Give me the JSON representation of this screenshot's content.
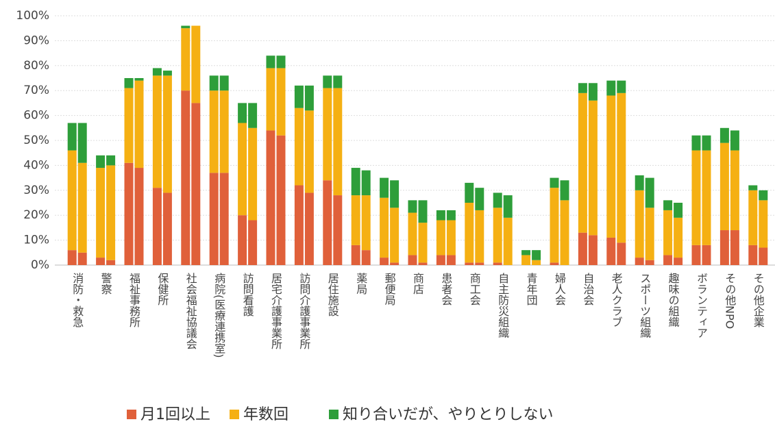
{
  "chart_data": {
    "type": "bar",
    "stacked": true,
    "categories": [
      "消防・救急",
      "警察",
      "福祉事務所",
      "保健所",
      "社会福祉協議会",
      "病院(医療連携室)",
      "訪問看護",
      "居宅介護事業所",
      "訪問介護事業所",
      "居住施設",
      "薬局",
      "郵便局",
      "商店",
      "患者会",
      "商工会",
      "自主防災組織",
      "青年団",
      "婦人会",
      "自治会",
      "老人クラブ",
      "スポーツ組織",
      "趣味の組織",
      "ボランティア",
      "その他NPO",
      "その他企業"
    ],
    "series": [
      {
        "name": "月1回以上",
        "color": "#e0603a",
        "values": [
          [
            6,
            5
          ],
          [
            3,
            2
          ],
          [
            41,
            39
          ],
          [
            31,
            29
          ],
          [
            70,
            65
          ],
          [
            37,
            37
          ],
          [
            20,
            18
          ],
          [
            54,
            52
          ],
          [
            32,
            29
          ],
          [
            34,
            28
          ],
          [
            8,
            6
          ],
          [
            3,
            1
          ],
          [
            4,
            1
          ],
          [
            4,
            4
          ],
          [
            1,
            1
          ],
          [
            1,
            0
          ],
          [
            0,
            0
          ],
          [
            1,
            0
          ],
          [
            13,
            12
          ],
          [
            11,
            9
          ],
          [
            3,
            2
          ],
          [
            4,
            3
          ],
          [
            8,
            8
          ],
          [
            14,
            14
          ],
          [
            8,
            7
          ]
        ]
      },
      {
        "name": "年数回",
        "color": "#f5b013",
        "values": [
          [
            40,
            36
          ],
          [
            36,
            38
          ],
          [
            30,
            35
          ],
          [
            45,
            47
          ],
          [
            25,
            31
          ],
          [
            33,
            33
          ],
          [
            37,
            37
          ],
          [
            25,
            27
          ],
          [
            31,
            33
          ],
          [
            37,
            43
          ],
          [
            20,
            22
          ],
          [
            24,
            22
          ],
          [
            17,
            16
          ],
          [
            14,
            14
          ],
          [
            24,
            21
          ],
          [
            22,
            19
          ],
          [
            4,
            2
          ],
          [
            30,
            26
          ],
          [
            56,
            54
          ],
          [
            57,
            60
          ],
          [
            27,
            21
          ],
          [
            18,
            16
          ],
          [
            38,
            38
          ],
          [
            35,
            32
          ],
          [
            22,
            19
          ]
        ]
      },
      {
        "name": "知り合いだが、やりとりしない",
        "color": "#2e9e3a",
        "values": [
          [
            11,
            16
          ],
          [
            5,
            4
          ],
          [
            4,
            1
          ],
          [
            3,
            2
          ],
          [
            1,
            0
          ],
          [
            6,
            6
          ],
          [
            8,
            10
          ],
          [
            5,
            5
          ],
          [
            9,
            10
          ],
          [
            5,
            5
          ],
          [
            11,
            10
          ],
          [
            8,
            11
          ],
          [
            5,
            9
          ],
          [
            4,
            4
          ],
          [
            8,
            9
          ],
          [
            6,
            9
          ],
          [
            2,
            4
          ],
          [
            4,
            8
          ],
          [
            4,
            7
          ],
          [
            6,
            5
          ],
          [
            6,
            12
          ],
          [
            4,
            6
          ],
          [
            6,
            6
          ],
          [
            6,
            8
          ],
          [
            2,
            4
          ]
        ]
      }
    ],
    "ylim": [
      0,
      100
    ],
    "yticks": [
      {
        "value": 0,
        "label": "0%"
      },
      {
        "value": 10,
        "label": "10%"
      },
      {
        "value": 20,
        "label": "20%"
      },
      {
        "value": 30,
        "label": "30%"
      },
      {
        "value": 40,
        "label": "40%"
      },
      {
        "value": 50,
        "label": "50%"
      },
      {
        "value": 60,
        "label": "60%"
      },
      {
        "value": 70,
        "label": "70%"
      },
      {
        "value": 80,
        "label": "80%"
      },
      {
        "value": 90,
        "label": "90%"
      },
      {
        "value": 100,
        "label": "100%"
      }
    ],
    "grid": true
  }
}
